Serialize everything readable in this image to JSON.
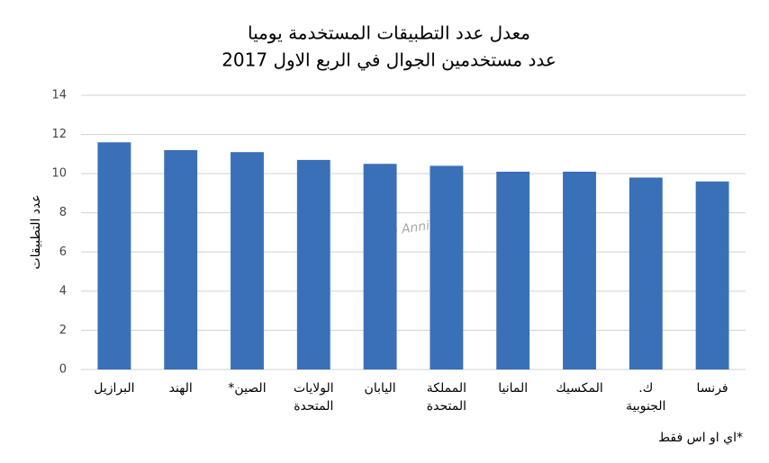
{
  "chart_data": {
    "type": "bar",
    "title": "معدل عدد التطبيقات المستخدمة يوميا",
    "subtitle": "عدد مستخدمين الجوال في الربع الاول 2017",
    "y_label": "عدد التطبيقات",
    "watermark": "App Annie",
    "footnote": "*اي او اس فقط",
    "categories": [
      "البرازيل",
      "الهند",
      "الصين*",
      "الولايات المتحدة",
      "اليابان",
      "المملكة المتحدة",
      "المانيا",
      "المكسيك",
      "ك. الجنوبية",
      "فرنسا"
    ],
    "values": [
      11.6,
      11.2,
      11.1,
      10.7,
      10.5,
      10.4,
      10.1,
      10.1,
      9.8,
      9.6
    ],
    "color": "#3a70b8",
    "ylim": [
      0,
      14
    ],
    "yticks": [
      0,
      2,
      4,
      6,
      8,
      10,
      12,
      14
    ],
    "grid": true
  }
}
